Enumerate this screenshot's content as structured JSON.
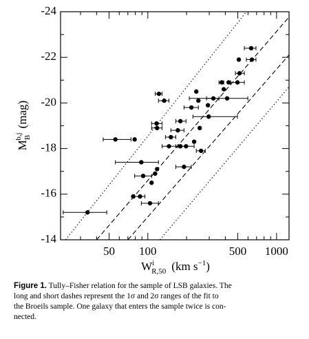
{
  "chart_data": {
    "type": "scatter",
    "ylabel": {
      "main": "M",
      "sub": "B",
      "sup": "b,j",
      "unit": "(mag)"
    },
    "xlabel": {
      "main": "W",
      "sup": "i",
      "sub": "R,50",
      "unit": "(km s",
      "unit_sup": "−1",
      "close": ")"
    },
    "log_x": true,
    "xlim": [
      21,
      1250
    ],
    "ylim": [
      -14,
      -24
    ],
    "xticks": [
      50,
      100,
      500,
      1000
    ],
    "xminor_ticks": [
      30,
      40,
      60,
      70,
      80,
      90,
      200,
      300,
      400,
      600,
      700,
      800,
      900
    ],
    "yticks": [
      -24,
      -22,
      -20,
      -18,
      -16,
      -14
    ],
    "yminor_ticks": [
      -23,
      -21,
      -19,
      -17,
      -15
    ],
    "color": "#000000",
    "x": [
      34,
      104,
      77,
      87,
      107,
      92,
      114,
      118,
      89,
      191,
      259,
      56,
      79,
      146,
      179,
      198,
      229,
      151,
      171,
      118,
      179,
      253,
      117,
      134,
      218,
      297,
      247,
      238,
      293,
      323,
      413,
      375,
      389,
      497,
      424,
      515,
      509,
      643,
      635,
      122
    ],
    "values": [
      -15.2,
      -15.6,
      -15.9,
      -15.9,
      -16.5,
      -16.8,
      -16.9,
      -17.1,
      -17.4,
      -17.2,
      -17.9,
      -18.4,
      -18.4,
      -18.1,
      -18.1,
      -18.1,
      -18.3,
      -18.5,
      -18.8,
      -18.9,
      -19.2,
      -18.9,
      -19.1,
      -20.1,
      -19.8,
      -19.4,
      -20.1,
      -20.5,
      -19.9,
      -20.2,
      -20.2,
      -20.9,
      -20.6,
      -20.9,
      -20.9,
      -21.3,
      -21.9,
      -21.9,
      -22.4,
      -20.4
    ],
    "xerr": [
      [
        22,
        48
      ],
      [
        89,
        121
      ],
      null,
      [
        79,
        95
      ],
      null,
      [
        79,
        107
      ],
      null,
      null,
      [
        56,
        121
      ],
      [
        165,
        218
      ],
      [
        238,
        279
      ],
      [
        45,
        74
      ],
      null,
      [
        129,
        171
      ],
      null,
      [
        165,
        229
      ],
      null,
      [
        137,
        165
      ],
      [
        151,
        191
      ],
      [
        107,
        129
      ],
      [
        165,
        198
      ],
      null,
      [
        107,
        129
      ],
      [
        121,
        146
      ],
      [
        191,
        247
      ],
      [
        224,
        497
      ],
      null,
      null,
      null,
      [
        286,
        357
      ],
      [
        210,
        598
      ],
      [
        357,
        389
      ],
      null,
      [
        440,
        562
      ],
      null,
      [
        479,
        562
      ],
      null,
      [
        583,
        692
      ],
      [
        562,
        692
      ],
      [
        114,
        129
      ]
    ],
    "lines": [
      {
        "style": "dotted",
        "x": [
          23,
          583
        ],
        "y": [
          -14,
          -24
        ]
      },
      {
        "style": "dashed",
        "x": [
          40,
          1247
        ],
        "y": [
          -14,
          -23.76
        ]
      },
      {
        "style": "dashed",
        "x": [
          70,
          1247
        ],
        "y": [
          -14,
          -22.1
        ]
      },
      {
        "style": "dotted",
        "x": [
          124,
          1247
        ],
        "y": [
          -14,
          -20.7
        ]
      }
    ],
    "caption": {
      "label": "Figure 1.",
      "lines": [
        "Tully–Fisher relation for the sample of LSB galaxies. The",
        "long and short dashes represent the 1σ and 2σ ranges of the fit to",
        "the Broeils sample. One galaxy that enters the sample twice is con-",
        "nected."
      ]
    }
  }
}
